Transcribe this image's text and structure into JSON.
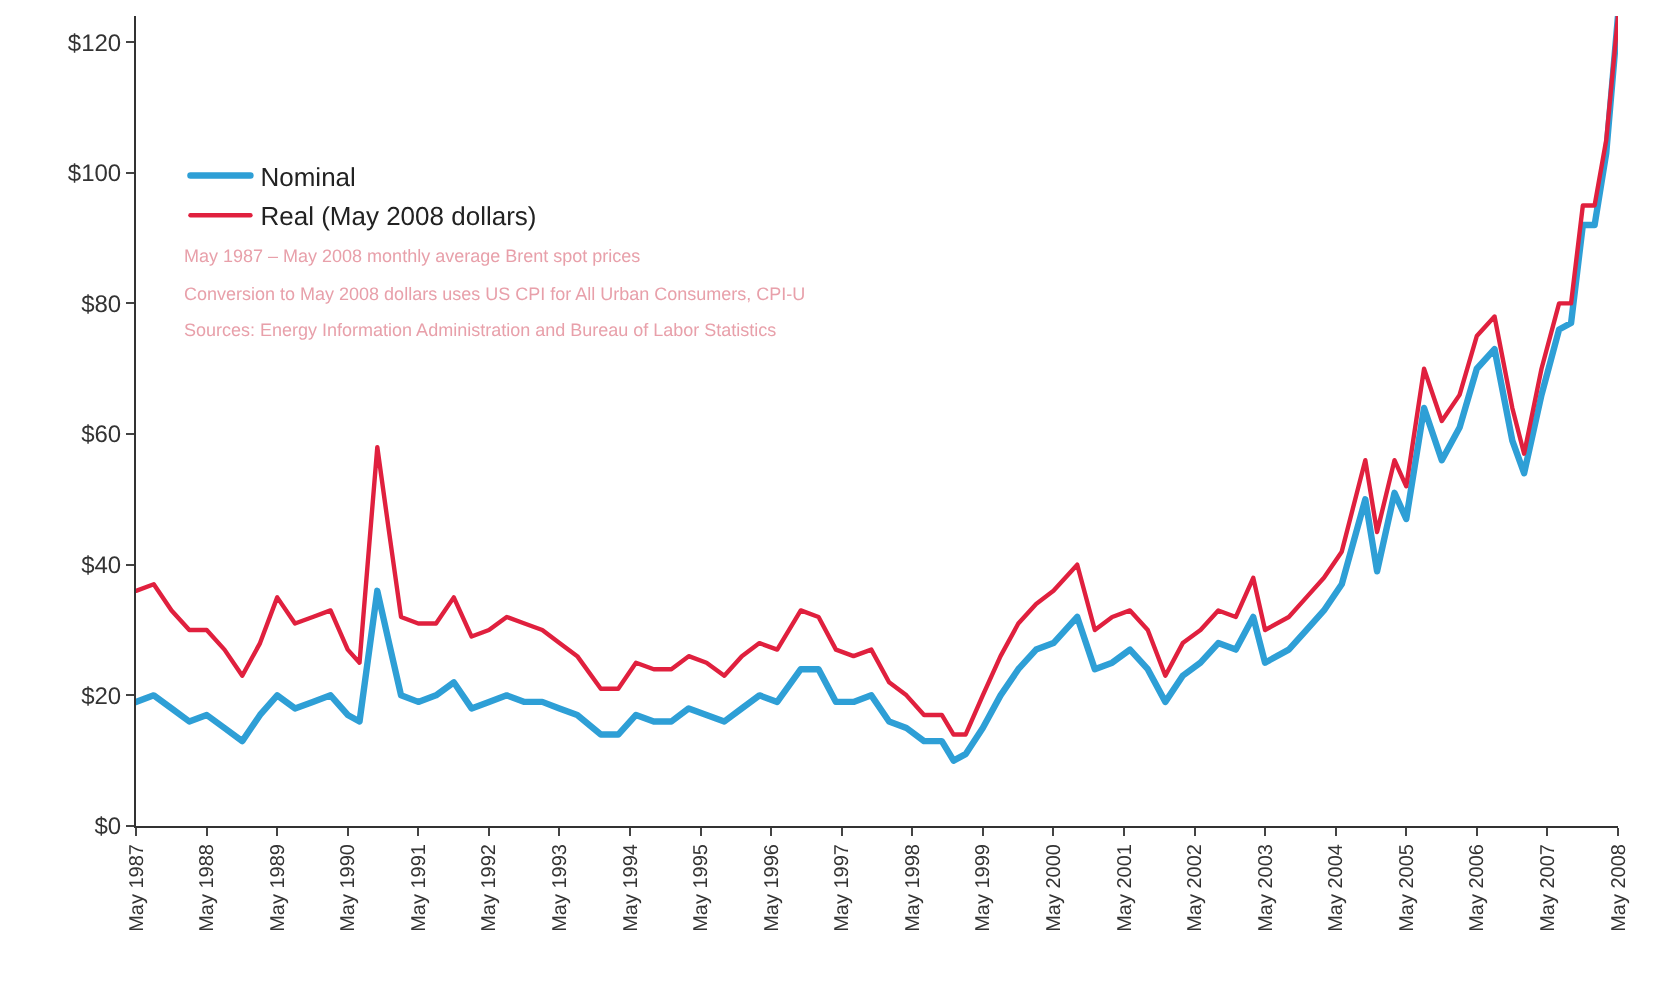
{
  "chart_data": {
    "type": "line",
    "x": [
      "1987-05",
      "1987-08",
      "1987-11",
      "1988-02",
      "1988-05",
      "1988-08",
      "1988-11",
      "1989-02",
      "1989-05",
      "1989-08",
      "1989-11",
      "1990-02",
      "1990-05",
      "1990-07",
      "1990-10",
      "1990-12",
      "1991-02",
      "1991-05",
      "1991-08",
      "1991-11",
      "1992-02",
      "1992-05",
      "1992-08",
      "1992-11",
      "1993-02",
      "1993-05",
      "1993-08",
      "1993-12",
      "1994-03",
      "1994-06",
      "1994-09",
      "1994-12",
      "1995-03",
      "1995-06",
      "1995-09",
      "1995-12",
      "1996-03",
      "1996-06",
      "1996-10",
      "1997-01",
      "1997-04",
      "1997-07",
      "1997-10",
      "1998-01",
      "1998-04",
      "1998-07",
      "1998-10",
      "1998-12",
      "1999-02",
      "1999-05",
      "1999-08",
      "1999-11",
      "2000-02",
      "2000-05",
      "2000-09",
      "2000-12",
      "2001-03",
      "2001-06",
      "2001-09",
      "2001-12",
      "2002-03",
      "2002-06",
      "2002-09",
      "2002-12",
      "2003-03",
      "2003-05",
      "2003-09",
      "2003-12",
      "2004-03",
      "2004-06",
      "2004-10",
      "2004-12",
      "2005-03",
      "2005-05",
      "2005-08",
      "2005-11",
      "2006-02",
      "2006-05",
      "2006-08",
      "2006-11",
      "2007-01",
      "2007-04",
      "2007-07",
      "2007-09",
      "2007-11",
      "2008-01",
      "2008-03",
      "2008-05"
    ],
    "series": [
      {
        "name": "Nominal",
        "color": "#2e9fd6",
        "values": [
          19,
          20,
          18,
          16,
          17,
          15,
          13,
          17,
          20,
          18,
          19,
          20,
          17,
          16,
          36,
          28,
          20,
          19,
          20,
          22,
          18,
          19,
          20,
          19,
          19,
          18,
          17,
          14,
          14,
          17,
          16,
          16,
          18,
          17,
          16,
          18,
          20,
          19,
          24,
          24,
          19,
          19,
          20,
          16,
          15,
          13,
          13,
          10,
          11,
          15,
          20,
          24,
          27,
          28,
          32,
          24,
          25,
          27,
          24,
          19,
          23,
          25,
          28,
          27,
          32,
          25,
          27,
          30,
          33,
          37,
          50,
          39,
          51,
          47,
          64,
          56,
          61,
          70,
          73,
          59,
          54,
          66,
          76,
          77,
          92,
          92,
          103,
          124
        ]
      },
      {
        "name": "Real (May 2008 dollars)",
        "color": "#e0203e",
        "values": [
          36,
          37,
          33,
          30,
          30,
          27,
          23,
          28,
          35,
          31,
          32,
          33,
          27,
          25,
          58,
          45,
          32,
          31,
          31,
          35,
          29,
          30,
          32,
          31,
          30,
          28,
          26,
          21,
          21,
          25,
          24,
          24,
          26,
          25,
          23,
          26,
          28,
          27,
          33,
          32,
          27,
          26,
          27,
          22,
          20,
          17,
          17,
          14,
          14,
          20,
          26,
          31,
          34,
          36,
          40,
          30,
          32,
          33,
          30,
          23,
          28,
          30,
          33,
          32,
          38,
          30,
          32,
          35,
          38,
          42,
          56,
          45,
          56,
          52,
          70,
          62,
          66,
          75,
          78,
          64,
          57,
          70,
          80,
          80,
          95,
          95,
          105,
          124
        ]
      }
    ],
    "xlim": [
      "1987-05",
      "2008-05"
    ],
    "xticks": [
      {
        "value": "1987-05",
        "label": "May 1987"
      },
      {
        "value": "1988-05",
        "label": "May 1988"
      },
      {
        "value": "1989-05",
        "label": "May 1989"
      },
      {
        "value": "1990-05",
        "label": "May 1990"
      },
      {
        "value": "1991-05",
        "label": "May 1991"
      },
      {
        "value": "1992-05",
        "label": "May 1992"
      },
      {
        "value": "1993-05",
        "label": "May 1993"
      },
      {
        "value": "1994-05",
        "label": "May 1994"
      },
      {
        "value": "1995-05",
        "label": "May 1995"
      },
      {
        "value": "1996-05",
        "label": "May 1996"
      },
      {
        "value": "1997-05",
        "label": "May 1997"
      },
      {
        "value": "1998-05",
        "label": "May 1998"
      },
      {
        "value": "1999-05",
        "label": "May 1999"
      },
      {
        "value": "2000-05",
        "label": "May 2000"
      },
      {
        "value": "2001-05",
        "label": "May 2001"
      },
      {
        "value": "2002-05",
        "label": "May 2002"
      },
      {
        "value": "2003-05",
        "label": "May 2003"
      },
      {
        "value": "2004-05",
        "label": "May 2004"
      },
      {
        "value": "2005-05",
        "label": "May 2005"
      },
      {
        "value": "2006-05",
        "label": "May 2006"
      },
      {
        "value": "2007-05",
        "label": "May 2007"
      },
      {
        "value": "2008-05",
        "label": "May 2008"
      }
    ],
    "ylim": [
      0,
      124
    ],
    "yticks": [
      {
        "value": 0,
        "label": "$0"
      },
      {
        "value": 20,
        "label": "$20"
      },
      {
        "value": 40,
        "label": "$40"
      },
      {
        "value": 60,
        "label": "$60"
      },
      {
        "value": 80,
        "label": "$80"
      },
      {
        "value": 100,
        "label": "$100"
      },
      {
        "value": 120,
        "label": "$120"
      }
    ],
    "annotations": [
      "May 1987 – May 2008 monthly average Brent spot prices",
      "Conversion to May 2008 dollars uses US CPI for All Urban Consumers, CPI-U",
      "Sources: Energy Information Administration and Bureau of Labor Statistics"
    ],
    "legend": "top left",
    "grid": false,
    "marker": "none",
    "line_style": "solid"
  }
}
